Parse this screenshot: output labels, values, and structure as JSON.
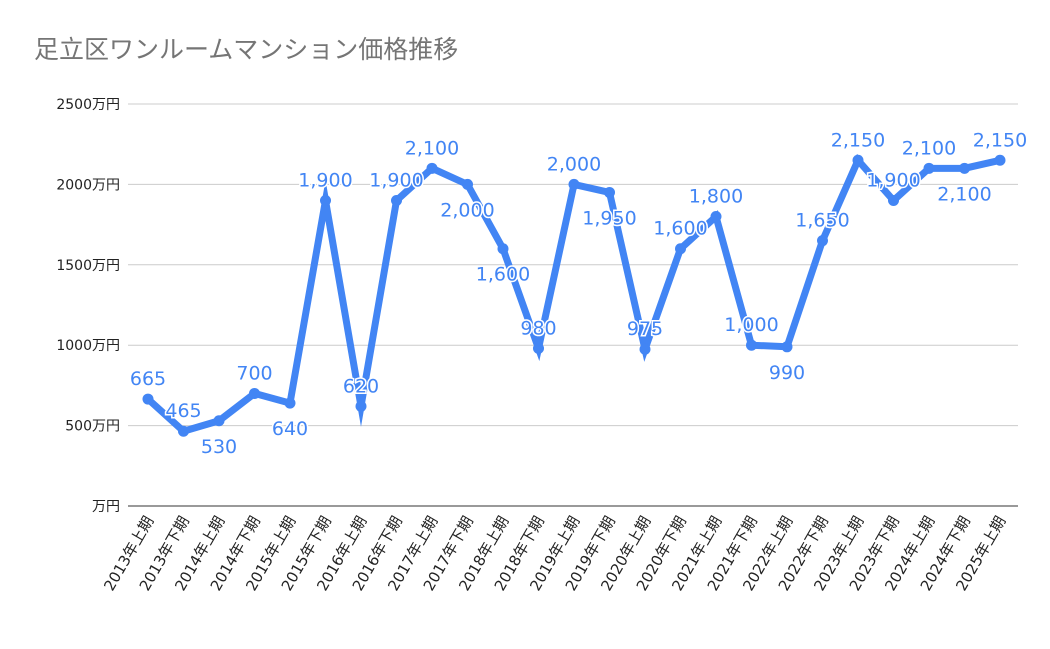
{
  "chart_data": {
    "type": "line",
    "title": "足立区ワンルームマンション価格推移",
    "xlabel": "",
    "ylabel": "",
    "ylim": [
      0,
      2500
    ],
    "yticks": [
      0,
      500,
      1000,
      1500,
      2000,
      2500
    ],
    "ytick_labels": [
      "万円",
      "500万円",
      "1000万円",
      "1500万円",
      "2000万円",
      "2500万円"
    ],
    "grid": true,
    "legend": "none",
    "color": "#4285f4",
    "categories": [
      "2013年上期",
      "2013年下期",
      "2014年上期",
      "2014年下期",
      "2015年上期",
      "2015年下期",
      "2016年上期",
      "2016年下期",
      "2017年上期",
      "2017年下期",
      "2018年上期",
      "2018年下期",
      "2019年上期",
      "2019年下期",
      "2020年上期",
      "2020年下期",
      "2021年上期",
      "2021年下期",
      "2022年上期",
      "2022年下期",
      "2023年上期",
      "2023年下期",
      "2024年上期",
      "2024年下期",
      "2025年上期"
    ],
    "values": [
      665,
      465,
      530,
      700,
      640,
      1900,
      620,
      1900,
      2100,
      2000,
      1600,
      980,
      2000,
      1950,
      975,
      1600,
      1800,
      1000,
      990,
      1650,
      2150,
      1900,
      2100,
      2100,
      2150
    ],
    "data_labels": [
      "665",
      "465",
      "530",
      "700",
      "640",
      "1,900",
      "620",
      "1,900",
      "2,100",
      "2,000",
      "1,600",
      "980",
      "2,000",
      "1,950",
      "975",
      "1,600",
      "1,800",
      "1,000",
      "990",
      "1,650",
      "2,150",
      "1,900",
      "2,100",
      "2,100",
      "2,150"
    ]
  }
}
